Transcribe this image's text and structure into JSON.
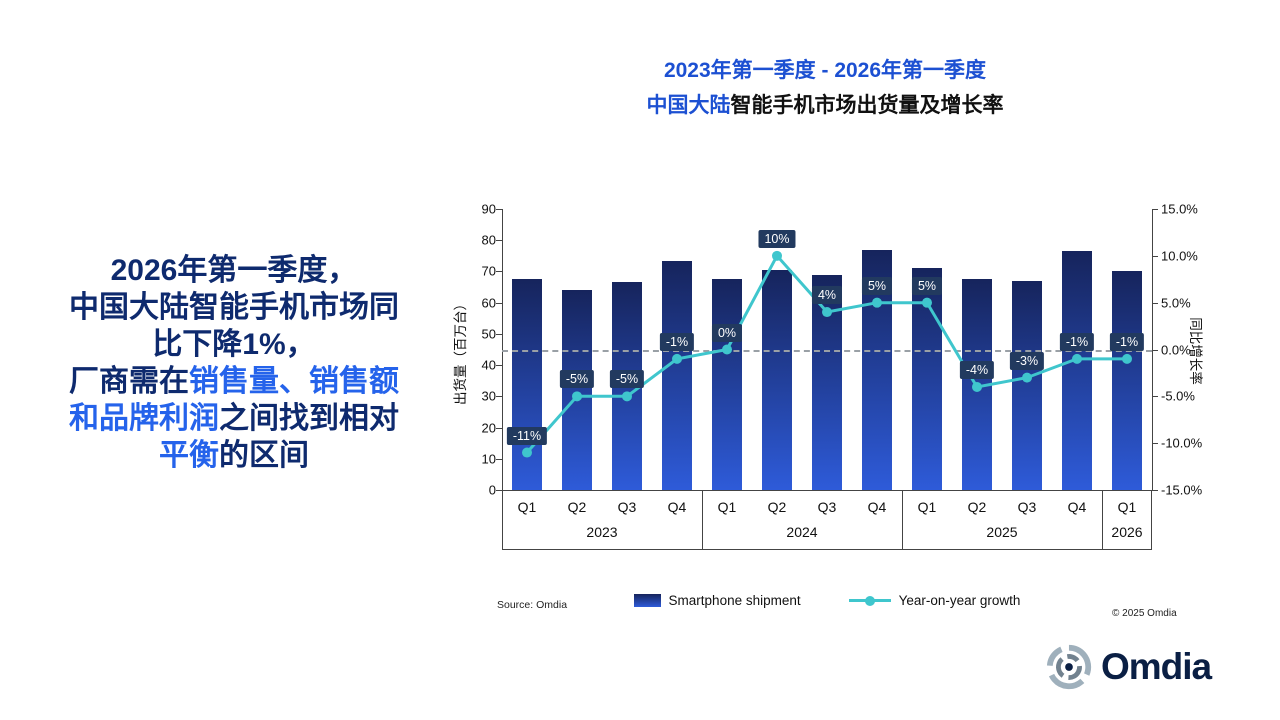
{
  "title": {
    "line1": "2023年第一季度 - 2026年第一季度",
    "line2": [
      {
        "text": "中国大陆",
        "highlight": true
      },
      {
        "text": "智能手机市场出货量及增长率",
        "highlight": false
      }
    ]
  },
  "insight": {
    "lines": [
      [
        {
          "text": "2026年第一季度，",
          "highlight": false
        }
      ],
      [
        {
          "text": "中国大陆智能手机市场同",
          "highlight": false
        }
      ],
      [
        {
          "text": "比下降1%，",
          "highlight": false
        }
      ],
      [
        {
          "text": "厂商需在",
          "highlight": false
        },
        {
          "text": "销售量、销售额",
          "highlight": true
        }
      ],
      [
        {
          "text": "和品牌利润",
          "highlight": true
        },
        {
          "text": "之间找到相对",
          "highlight": false
        }
      ],
      [
        {
          "text": "平衡",
          "highlight": true
        },
        {
          "text": "的区间",
          "highlight": false
        }
      ]
    ]
  },
  "chart_data": {
    "type": "bar",
    "subtype": "bar+line combo",
    "categories": [
      "Q1",
      "Q2",
      "Q3",
      "Q4",
      "Q1",
      "Q2",
      "Q3",
      "Q4",
      "Q1",
      "Q2",
      "Q3",
      "Q4",
      "Q1"
    ],
    "year_groups": [
      {
        "label": "2023",
        "count": 4
      },
      {
        "label": "2024",
        "count": 4
      },
      {
        "label": "2025",
        "count": 4
      },
      {
        "label": "2026",
        "count": 1
      }
    ],
    "series": [
      {
        "name": "Smartphone shipment",
        "type": "bar",
        "unit": "百万台",
        "values": [
          67.5,
          64,
          66.5,
          73.5,
          67.5,
          70.5,
          69,
          77,
          71,
          67.5,
          67,
          76.5,
          70
        ]
      },
      {
        "name": "Year-on-year growth",
        "type": "line",
        "unit": "%",
        "values": [
          -11,
          -5,
          -5,
          -1,
          0,
          10,
          4,
          5,
          5,
          -4,
          -3,
          -1,
          -1
        ],
        "labels": [
          "-11%",
          "-5%",
          "-5%",
          "-1%",
          "0%",
          "10%",
          "4%",
          "5%",
          "5%",
          "-4%",
          "-3%",
          "-1%",
          "-1%"
        ]
      }
    ],
    "left_axis": {
      "label": "出货量（百万台）",
      "min": 0,
      "max": 90,
      "ticks": [
        "90",
        "80",
        "70",
        "60",
        "50",
        "40",
        "30",
        "20",
        "10",
        "0"
      ]
    },
    "right_axis": {
      "label": "同比增长率",
      "min": -15,
      "max": 15,
      "ticks": [
        "15.0%",
        "10.0%",
        "5.0%",
        "0.0%",
        "-5.0%",
        "-10.0%",
        "-15.0%"
      ]
    },
    "zero_line": true,
    "grid": false,
    "legend_position": "bottom"
  },
  "legend": [
    {
      "label": "Smartphone shipment"
    },
    {
      "label": "Year-on-year growth"
    }
  ],
  "source": "Source: Omdia",
  "copyright": "© 2025 Omdia",
  "logo_text": "Omdia",
  "colors": {
    "title_blue": "#1c50d2",
    "insight_navy": "#0e2a6e",
    "insight_highlight": "#2563eb",
    "bar_top": "#16245c",
    "bar_bottom": "#2e5bd9",
    "growth_line": "#3fc6cd",
    "label_bg": "#223a5f",
    "zero_line_gray": "#9aa0a6"
  }
}
